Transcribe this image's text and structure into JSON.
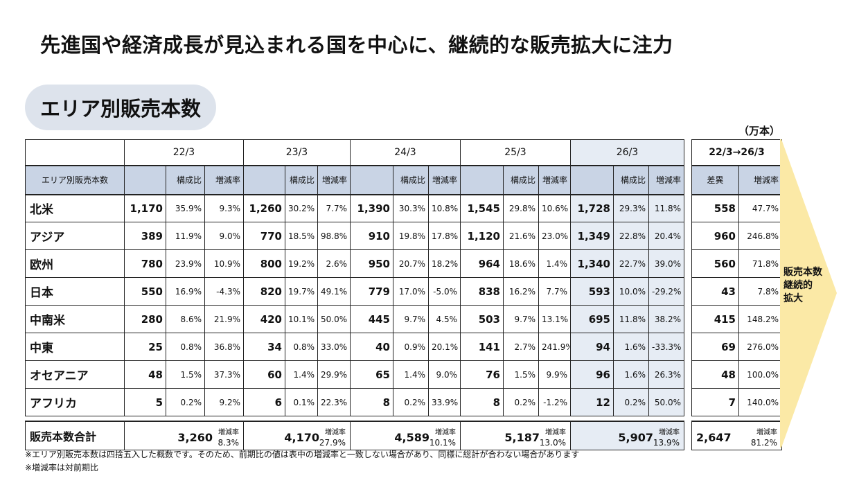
{
  "headline": "先進国や経済成長が見込まれる国を中心に、継続的な販売拡大に注力",
  "section_title": "エリア別販売本数",
  "unit_label": "（万本）",
  "table": {
    "row_header": "エリア別販売本数",
    "years": [
      "22/3",
      "23/3",
      "24/3",
      "25/3",
      "26/3"
    ],
    "col_share": "構成比",
    "col_rate": "増減率",
    "rows": [
      {
        "region": "北米",
        "cells": [
          [
            "1,170",
            "35.9%",
            "9.3%"
          ],
          [
            "1,260",
            "30.2%",
            "7.7%"
          ],
          [
            "1,390",
            "30.3%",
            "10.8%"
          ],
          [
            "1,545",
            "29.8%",
            "10.6%"
          ],
          [
            "1,728",
            "29.3%",
            "11.8%"
          ]
        ]
      },
      {
        "region": "アジア",
        "cells": [
          [
            "389",
            "11.9%",
            "9.0%"
          ],
          [
            "770",
            "18.5%",
            "98.8%"
          ],
          [
            "910",
            "19.8%",
            "17.8%"
          ],
          [
            "1,120",
            "21.6%",
            "23.0%"
          ],
          [
            "1,349",
            "22.8%",
            "20.4%"
          ]
        ]
      },
      {
        "region": "欧州",
        "cells": [
          [
            "780",
            "23.9%",
            "10.9%"
          ],
          [
            "800",
            "19.2%",
            "2.6%"
          ],
          [
            "950",
            "20.7%",
            "18.2%"
          ],
          [
            "964",
            "18.6%",
            "1.4%"
          ],
          [
            "1,340",
            "22.7%",
            "39.0%"
          ]
        ]
      },
      {
        "region": "日本",
        "cells": [
          [
            "550",
            "16.9%",
            "-4.3%"
          ],
          [
            "820",
            "19.7%",
            "49.1%"
          ],
          [
            "779",
            "17.0%",
            "-5.0%"
          ],
          [
            "838",
            "16.2%",
            "7.7%"
          ],
          [
            "593",
            "10.0%",
            "-29.2%"
          ]
        ]
      },
      {
        "region": "中南米",
        "cells": [
          [
            "280",
            "8.6%",
            "21.9%"
          ],
          [
            "420",
            "10.1%",
            "50.0%"
          ],
          [
            "445",
            "9.7%",
            "4.5%"
          ],
          [
            "503",
            "9.7%",
            "13.1%"
          ],
          [
            "695",
            "11.8%",
            "38.2%"
          ]
        ]
      },
      {
        "region": "中東",
        "cells": [
          [
            "25",
            "0.8%",
            "36.8%"
          ],
          [
            "34",
            "0.8%",
            "33.0%"
          ],
          [
            "40",
            "0.9%",
            "20.1%"
          ],
          [
            "141",
            "2.7%",
            "241.9%"
          ],
          [
            "94",
            "1.6%",
            "-33.3%"
          ]
        ]
      },
      {
        "region": "オセアニア",
        "cells": [
          [
            "48",
            "1.5%",
            "37.3%"
          ],
          [
            "60",
            "1.4%",
            "29.9%"
          ],
          [
            "65",
            "1.4%",
            "9.0%"
          ],
          [
            "76",
            "1.5%",
            "9.9%"
          ],
          [
            "96",
            "1.6%",
            "26.3%"
          ]
        ]
      },
      {
        "region": "アフリカ",
        "cells": [
          [
            "5",
            "0.2%",
            "9.2%"
          ],
          [
            "6",
            "0.1%",
            "22.3%"
          ],
          [
            "8",
            "0.2%",
            "33.9%"
          ],
          [
            "8",
            "0.2%",
            "-1.2%"
          ],
          [
            "12",
            "0.2%",
            "50.0%"
          ]
        ]
      }
    ],
    "total_label": "販売本数合計",
    "total_rate_label": "増減率",
    "totals": [
      {
        "value": "3,260",
        "rate": "8.3%"
      },
      {
        "value": "4,170",
        "rate": "27.9%"
      },
      {
        "value": "4,589",
        "rate": "10.1%"
      },
      {
        "value": "5,187",
        "rate": "13.0%"
      },
      {
        "value": "5,907",
        "rate": "13.9%"
      }
    ]
  },
  "diff_table": {
    "period": "22/3→26/3",
    "col_diff": "差異",
    "col_rate": "増減率",
    "rows": [
      [
        "558",
        "47.7%"
      ],
      [
        "960",
        "246.8%"
      ],
      [
        "560",
        "71.8%"
      ],
      [
        "43",
        "7.8%"
      ],
      [
        "415",
        "148.2%"
      ],
      [
        "69",
        "276.0%"
      ],
      [
        "48",
        "100.0%"
      ],
      [
        "7",
        "140.0%"
      ]
    ],
    "total": {
      "value": "2,647",
      "rate_label": "増減率",
      "rate": "81.2%"
    }
  },
  "arrow_label": [
    "販売本数",
    "継続的",
    "拡大"
  ],
  "notes": [
    "※エリア別販売本数は四捨五入した概数です。そのため、前期比の値は表中の増減率と一致しない場合があり、同様に総計が合わない場合があります",
    "※増減率は対前期比"
  ],
  "colors": {
    "header_fill": "#c9d4e5",
    "highlight_fill": "#e6ecf4",
    "pill_fill": "#dde3ec",
    "arrow_fill": "#fbe9a6"
  }
}
